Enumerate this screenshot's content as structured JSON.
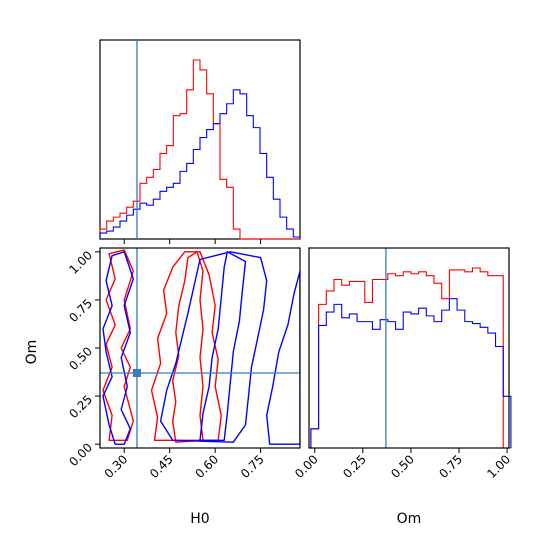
{
  "chart_data": [
    {
      "type": "histogram",
      "panel": "H0 marginal",
      "x_param": "H0",
      "xlim": [
        0.22,
        0.88
      ],
      "bin_edges": [
        0.22,
        0.242,
        0.264,
        0.286,
        0.308,
        0.33,
        0.352,
        0.374,
        0.396,
        0.418,
        0.44,
        0.462,
        0.484,
        0.506,
        0.528,
        0.55,
        0.572,
        0.594,
        0.616,
        0.638,
        0.66,
        0.682,
        0.704,
        0.726,
        0.748,
        0.77,
        0.792,
        0.814,
        0.836,
        0.858,
        0.88
      ],
      "series": [
        {
          "color": "#ff0000",
          "counts": [
            0.05,
            0.09,
            0.11,
            0.13,
            0.16,
            0.19,
            0.28,
            0.31,
            0.35,
            0.43,
            0.47,
            0.62,
            0.63,
            0.75,
            0.9,
            0.85,
            0.73,
            0.58,
            0.3,
            0.26,
            0.05,
            0,
            0,
            0,
            0,
            0,
            0,
            0,
            0,
            0
          ]
        },
        {
          "color": "#0000ff",
          "counts": [
            0.03,
            0.04,
            0.06,
            0.09,
            0.12,
            0.15,
            0.18,
            0.17,
            0.2,
            0.24,
            0.26,
            0.28,
            0.34,
            0.38,
            0.45,
            0.51,
            0.55,
            0.58,
            0.63,
            0.68,
            0.75,
            0.73,
            0.62,
            0.56,
            0.43,
            0.31,
            0.2,
            0.11,
            0.05,
            0.01
          ]
        }
      ],
      "truth": {
        "H0": 0.342
      }
    },
    {
      "type": "contour",
      "panel": "H0 vs Om",
      "xlabel": "H0",
      "ylabel": "Om",
      "xlim": [
        0.22,
        0.88
      ],
      "ylim": [
        -0.02,
        1.02
      ],
      "xticks": [
        "0.30",
        "0.45",
        "0.60",
        "0.75"
      ],
      "yticks": [
        "0.00",
        "0.25",
        "0.50",
        "0.75",
        "1.00"
      ],
      "series": [
        {
          "color": "#ff0000",
          "level": "inner",
          "points": [
            [
              0.47,
              0.01
            ],
            [
              0.46,
              0.12
            ],
            [
              0.47,
              0.22
            ],
            [
              0.46,
              0.33
            ],
            [
              0.48,
              0.46
            ],
            [
              0.47,
              0.58
            ],
            [
              0.48,
              0.72
            ],
            [
              0.5,
              0.85
            ],
            [
              0.51,
              0.97
            ],
            [
              0.54,
              1.0
            ],
            [
              0.56,
              0.9
            ],
            [
              0.55,
              0.75
            ],
            [
              0.56,
              0.6
            ],
            [
              0.55,
              0.45
            ],
            [
              0.56,
              0.3
            ],
            [
              0.55,
              0.15
            ],
            [
              0.56,
              0.02
            ]
          ]
        },
        {
          "color": "#ff0000",
          "level": "outer",
          "points": [
            [
              0.25,
              0.02
            ],
            [
              0.26,
              0.15
            ],
            [
              0.23,
              0.28
            ],
            [
              0.26,
              0.4
            ],
            [
              0.24,
              0.52
            ],
            [
              0.27,
              0.62
            ],
            [
              0.24,
              0.75
            ],
            [
              0.27,
              0.86
            ],
            [
              0.25,
              0.99
            ],
            [
              0.3,
              1.01
            ],
            [
              0.33,
              0.9
            ],
            [
              0.3,
              0.75
            ],
            [
              0.32,
              0.6
            ],
            [
              0.29,
              0.5
            ],
            [
              0.32,
              0.4
            ],
            [
              0.3,
              0.3
            ],
            [
              0.33,
              0.12
            ],
            [
              0.31,
              0.02
            ]
          ]
        },
        {
          "color": "#ff0000",
          "level": "outer2",
          "points": [
            [
              0.4,
              0.02
            ],
            [
              0.41,
              0.14
            ],
            [
              0.39,
              0.28
            ],
            [
              0.42,
              0.42
            ],
            [
              0.41,
              0.55
            ],
            [
              0.44,
              0.68
            ],
            [
              0.43,
              0.8
            ],
            [
              0.46,
              0.92
            ],
            [
              0.5,
              1.0
            ],
            [
              0.55,
              1.0
            ],
            [
              0.58,
              0.88
            ],
            [
              0.6,
              0.72
            ],
            [
              0.59,
              0.58
            ],
            [
              0.61,
              0.44
            ],
            [
              0.6,
              0.3
            ],
            [
              0.62,
              0.15
            ],
            [
              0.61,
              0.02
            ]
          ]
        },
        {
          "color": "#0000ff",
          "level": "inner",
          "points": [
            [
              0.55,
              0.02
            ],
            [
              0.56,
              0.16
            ],
            [
              0.58,
              0.3
            ],
            [
              0.59,
              0.45
            ],
            [
              0.61,
              0.6
            ],
            [
              0.62,
              0.76
            ],
            [
              0.63,
              0.92
            ],
            [
              0.64,
              1.0
            ],
            [
              0.7,
              0.95
            ],
            [
              0.69,
              0.8
            ],
            [
              0.68,
              0.64
            ],
            [
              0.66,
              0.48
            ],
            [
              0.65,
              0.32
            ],
            [
              0.64,
              0.16
            ],
            [
              0.63,
              0.02
            ]
          ]
        },
        {
          "color": "#0000ff",
          "level": "outer",
          "points": [
            [
              0.46,
              0.02
            ],
            [
              0.42,
              0.12
            ],
            [
              0.44,
              0.28
            ],
            [
              0.47,
              0.42
            ],
            [
              0.49,
              0.55
            ],
            [
              0.51,
              0.68
            ],
            [
              0.53,
              0.82
            ],
            [
              0.55,
              0.96
            ],
            [
              0.65,
              1.0
            ],
            [
              0.75,
              0.97
            ],
            [
              0.77,
              0.85
            ],
            [
              0.76,
              0.7
            ],
            [
              0.74,
              0.55
            ],
            [
              0.72,
              0.4
            ],
            [
              0.71,
              0.25
            ],
            [
              0.7,
              0.1
            ],
            [
              0.66,
              0.01
            ]
          ]
        },
        {
          "color": "#0000ff",
          "level": "outer2",
          "points": [
            [
              0.27,
              0.0
            ],
            [
              0.25,
              0.1
            ],
            [
              0.23,
              0.25
            ],
            [
              0.26,
              0.35
            ],
            [
              0.24,
              0.48
            ],
            [
              0.23,
              0.6
            ],
            [
              0.26,
              0.72
            ],
            [
              0.24,
              0.85
            ],
            [
              0.26,
              0.98
            ],
            [
              0.3,
              1.0
            ],
            [
              0.33,
              0.86
            ],
            [
              0.3,
              0.72
            ],
            [
              0.32,
              0.58
            ],
            [
              0.29,
              0.45
            ],
            [
              0.31,
              0.3
            ],
            [
              0.29,
              0.18
            ],
            [
              0.32,
              0.08
            ],
            [
              0.3,
              0.0
            ]
          ]
        },
        {
          "color": "#0000ff",
          "level": "outer3",
          "points": [
            [
              0.78,
              0.0
            ],
            [
              0.77,
              0.15
            ],
            [
              0.79,
              0.3
            ],
            [
              0.81,
              0.48
            ],
            [
              0.84,
              0.62
            ],
            [
              0.86,
              0.78
            ],
            [
              0.88,
              0.9
            ],
            [
              0.88,
              0.0
            ]
          ]
        }
      ],
      "truth": {
        "H0": 0.342,
        "Om": 0.37
      }
    },
    {
      "type": "histogram",
      "panel": "Om marginal",
      "xlabel": "Om",
      "x_param": "Om",
      "xlim": [
        -0.03,
        1.01
      ],
      "xticks": [
        "0.00",
        "0.25",
        "0.50",
        "0.75",
        "1.00"
      ],
      "bin_edges": [
        -0.02,
        0.02,
        0.06,
        0.1,
        0.14,
        0.18,
        0.22,
        0.26,
        0.3,
        0.34,
        0.38,
        0.42,
        0.46,
        0.5,
        0.54,
        0.58,
        0.62,
        0.66,
        0.7,
        0.74,
        0.78,
        0.82,
        0.86,
        0.9,
        0.94,
        0.98,
        1.02
      ],
      "series": [
        {
          "color": "#ff0000",
          "counts": [
            0.1,
            0.75,
            0.82,
            0.88,
            0.85,
            0.87,
            0.87,
            0.76,
            0.88,
            0.88,
            0.91,
            0.9,
            0.92,
            0.91,
            0.92,
            0.9,
            0.86,
            0.78,
            0.93,
            0.93,
            0.92,
            0.94,
            0.92,
            0.9,
            0.9,
            0.0
          ]
        },
        {
          "color": "#0000ff",
          "counts": [
            0.1,
            0.64,
            0.71,
            0.75,
            0.68,
            0.7,
            0.66,
            0.66,
            0.62,
            0.67,
            0.66,
            0.62,
            0.71,
            0.7,
            0.73,
            0.69,
            0.66,
            0.72,
            0.78,
            0.72,
            0.66,
            0.65,
            0.63,
            0.6,
            0.53,
            0.27
          ]
        }
      ],
      "truth": {
        "Om": 0.37
      }
    }
  ]
}
